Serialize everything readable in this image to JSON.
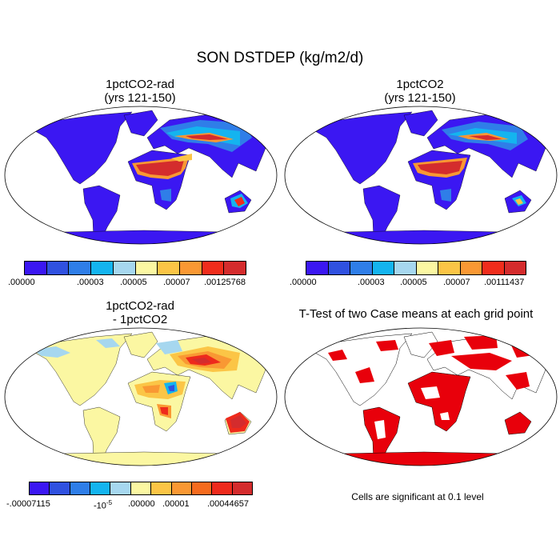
{
  "figure_title": "SON DSTDEP (kg/m2/d)",
  "panels": {
    "top_left": {
      "title_line1": "1pctCO2-rad",
      "title_line2": "(yrs 121-150)"
    },
    "top_right": {
      "title_line1": "1pctCO2",
      "title_line2": "(yrs 121-150)"
    },
    "bottom_left": {
      "title_line1": "1pctCO2-rad",
      "title_line2": "- 1pctCO2"
    },
    "bottom_right": {
      "title_line1": "T-Test of two Case means at each grid point",
      "note": "Cells are significant at 0.1 level"
    }
  },
  "colorbar_top_left": {
    "colors": [
      "#3b17f2",
      "#3051e0",
      "#2f7ee8",
      "#14b4ef",
      "#a6d7ef",
      "#fbf7a2",
      "#fbc546",
      "#f99833",
      "#f02d1c",
      "#d42c2d"
    ],
    "labels": [
      ".00000",
      ".00003",
      ".00005",
      ".00007",
      ".00125768"
    ]
  },
  "colorbar_top_right": {
    "colors": [
      "#3b17f2",
      "#3051e0",
      "#2f7ee8",
      "#14b4ef",
      "#a6d7ef",
      "#fbf7a2",
      "#fbc546",
      "#f99833",
      "#f02d1c",
      "#d42c2d"
    ],
    "labels": [
      ".00000",
      ".00003",
      ".00005",
      ".00007",
      ".00111437"
    ]
  },
  "colorbar_diff": {
    "colors": [
      "#3b17f2",
      "#3051e0",
      "#2f7ee8",
      "#14b4ef",
      "#a6d7ef",
      "#fbf7a2",
      "#fbc546",
      "#f99833",
      "#f56b1e",
      "#ee2a1c",
      "#d42c2d"
    ],
    "labels": [
      "-.00007115",
      "-10",
      "-5",
      ".00000",
      ".00001",
      ".00044657"
    ]
  },
  "colors": {
    "background_ocean": "#ffffff",
    "low_field": "#3b17f2",
    "diff_neutral": "#fbf7a2",
    "significant": "#e8000b",
    "coastline": "#000000"
  }
}
